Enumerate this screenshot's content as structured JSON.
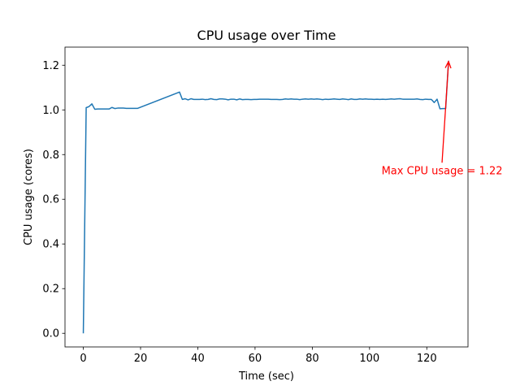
{
  "chart_data": {
    "type": "line",
    "title": "CPU usage over Time",
    "xlabel": "Time (sec)",
    "ylabel": "CPU usage (cores)",
    "xlim": [
      -6.4,
      134.4
    ],
    "ylim": [
      -0.061,
      1.281
    ],
    "xticks": [
      0,
      20,
      40,
      60,
      80,
      100,
      120
    ],
    "yticks": [
      0.0,
      0.2,
      0.4,
      0.6,
      0.8,
      1.0,
      1.2
    ],
    "xtick_labels": [
      "0",
      "20",
      "40",
      "60",
      "80",
      "100",
      "120"
    ],
    "ytick_labels": [
      "0.0",
      "0.2",
      "0.4",
      "0.6",
      "0.8",
      "1.0",
      "1.2"
    ],
    "grid": false,
    "line_color": "#1f77b4",
    "series": [
      {
        "x": [
          0,
          1,
          2,
          3,
          4,
          5,
          6,
          7,
          8,
          9,
          10,
          11,
          12,
          13,
          14,
          15,
          16,
          17,
          18,
          19,
          33.6,
          34.6,
          35.6,
          36.6,
          37.6,
          38.6,
          39.6,
          40.6,
          41.6,
          42.6,
          43.6,
          44.6,
          45.6,
          46.6,
          47.6,
          48.6,
          49.6,
          50.6,
          51.6,
          52.6,
          53.6,
          54.6,
          55.6,
          56.6,
          57.6,
          58.6,
          59.6,
          60.6,
          61.6,
          62.6,
          63.6,
          64.6,
          65.6,
          66.6,
          67.6,
          68.6,
          69.6,
          70.6,
          71.6,
          72.6,
          73.6,
          74.6,
          75.6,
          76.6,
          77.6,
          78.6,
          79.6,
          80.6,
          81.6,
          82.6,
          83.6,
          84.6,
          85.6,
          86.6,
          87.6,
          88.6,
          89.6,
          90.6,
          91.6,
          92.6,
          93.6,
          94.6,
          95.6,
          96.6,
          97.6,
          98.6,
          99.6,
          100.6,
          101.6,
          102.6,
          103.6,
          104.6,
          105.6,
          106.6,
          107.6,
          108.6,
          109.6,
          110.6,
          111.6,
          112.6,
          113.6,
          114.6,
          115.6,
          116.6,
          117.6,
          118.6,
          119.6,
          120.6,
          121.6,
          122.6,
          123.6,
          124.6,
          125.6,
          126.6,
          127.6
        ],
        "y": [
          0.0,
          1.01,
          1.015,
          1.027,
          1.003,
          1.004,
          1.004,
          1.004,
          1.004,
          1.004,
          1.011,
          1.006,
          1.008,
          1.008,
          1.008,
          1.007,
          1.007,
          1.007,
          1.007,
          1.007,
          1.08,
          1.047,
          1.05,
          1.045,
          1.05,
          1.047,
          1.047,
          1.047,
          1.048,
          1.046,
          1.047,
          1.05,
          1.047,
          1.046,
          1.049,
          1.049,
          1.048,
          1.045,
          1.048,
          1.048,
          1.045,
          1.049,
          1.046,
          1.047,
          1.047,
          1.046,
          1.047,
          1.047,
          1.048,
          1.048,
          1.048,
          1.048,
          1.047,
          1.047,
          1.047,
          1.046,
          1.047,
          1.049,
          1.048,
          1.049,
          1.048,
          1.048,
          1.046,
          1.048,
          1.049,
          1.048,
          1.049,
          1.048,
          1.049,
          1.048,
          1.046,
          1.048,
          1.047,
          1.048,
          1.049,
          1.048,
          1.047,
          1.049,
          1.048,
          1.046,
          1.049,
          1.047,
          1.047,
          1.049,
          1.048,
          1.049,
          1.048,
          1.048,
          1.047,
          1.048,
          1.047,
          1.048,
          1.047,
          1.048,
          1.049,
          1.048,
          1.049,
          1.05,
          1.048,
          1.048,
          1.048,
          1.048,
          1.048,
          1.049,
          1.047,
          1.046,
          1.048,
          1.047,
          1.047,
          1.033,
          1.048,
          1.005,
          1.006,
          1.006,
          1.22
        ]
      }
    ],
    "annotation": {
      "text": "Max CPU usage = 1.22",
      "point": [
        127.6,
        1.22
      ],
      "text_pos": [
        127.6,
        0.72
      ],
      "color": "#ff0000"
    }
  }
}
